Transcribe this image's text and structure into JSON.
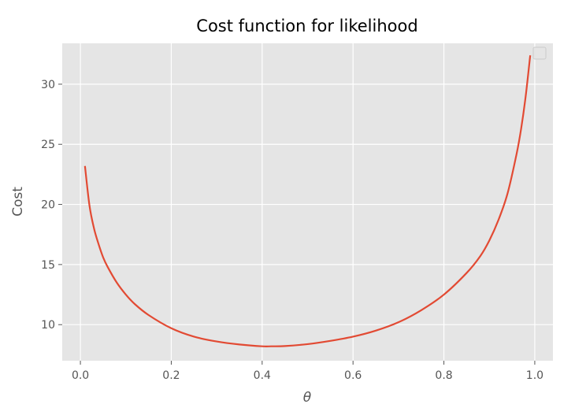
{
  "chart_data": {
    "type": "line",
    "title": "Cost function for likelihood",
    "xlabel": "θ",
    "ylabel": "Cost",
    "xlim": [
      -0.04,
      1.04
    ],
    "ylim": [
      7.0,
      33.4
    ],
    "x_ticks": [
      0.0,
      0.2,
      0.4,
      0.6,
      0.8,
      1.0
    ],
    "x_tick_labels": [
      "0.0",
      "0.2",
      "0.4",
      "0.6",
      "0.8",
      "1.0"
    ],
    "y_ticks": [
      10,
      15,
      20,
      25,
      30
    ],
    "y_tick_labels": [
      "10",
      "15",
      "20",
      "25",
      "30"
    ],
    "grid": true,
    "legend": {
      "placement": "top-right",
      "entries": []
    },
    "series": [
      {
        "color": "#e24a33",
        "x": [
          0.01,
          0.02,
          0.03,
          0.04,
          0.05,
          0.06,
          0.08,
          0.1,
          0.12,
          0.15,
          0.2,
          0.25,
          0.3,
          0.35,
          0.4,
          0.42,
          0.45,
          0.5,
          0.55,
          0.6,
          0.65,
          0.7,
          0.75,
          0.8,
          0.85,
          0.88,
          0.9,
          0.92,
          0.94,
          0.96,
          0.97,
          0.98,
          0.99
        ],
        "y": [
          23.2,
          19.9,
          18.0,
          16.7,
          15.6,
          14.8,
          13.5,
          12.5,
          11.7,
          10.8,
          9.7,
          9.0,
          8.6,
          8.35,
          8.2,
          8.2,
          8.22,
          8.38,
          8.65,
          9.0,
          9.5,
          10.2,
          11.2,
          12.5,
          14.3,
          15.7,
          17.0,
          18.7,
          20.9,
          24.2,
          26.3,
          29.0,
          32.4
        ]
      }
    ]
  }
}
